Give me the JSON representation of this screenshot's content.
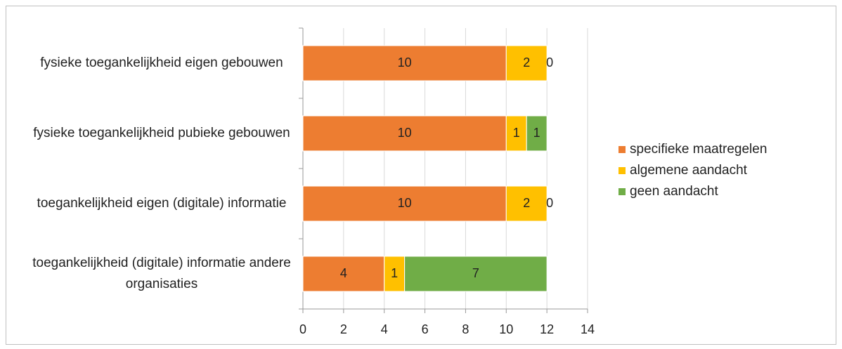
{
  "chart_data": {
    "type": "stacked-barh",
    "categories": [
      "fysieke toegankelijkheid eigen gebouwen",
      "fysieke toegankelijkheid pubieke gebouwen",
      "toegankelijkheid eigen (digitale) informatie",
      "toegankelijkheid (digitale) informatie andere organisaties"
    ],
    "series": [
      {
        "name": "specifieke maatregelen",
        "color": "#ed7d31",
        "values": [
          10,
          10,
          10,
          4
        ]
      },
      {
        "name": "algemene aandacht",
        "color": "#ffc000",
        "values": [
          2,
          1,
          2,
          1
        ]
      },
      {
        "name": "geen aandacht",
        "color": "#70ad47",
        "values": [
          0,
          1,
          0,
          7
        ]
      }
    ],
    "xlim": [
      0,
      14
    ],
    "xticks": [
      0,
      2,
      4,
      6,
      8,
      10,
      12,
      14
    ],
    "grid": true,
    "legend": "right"
  }
}
